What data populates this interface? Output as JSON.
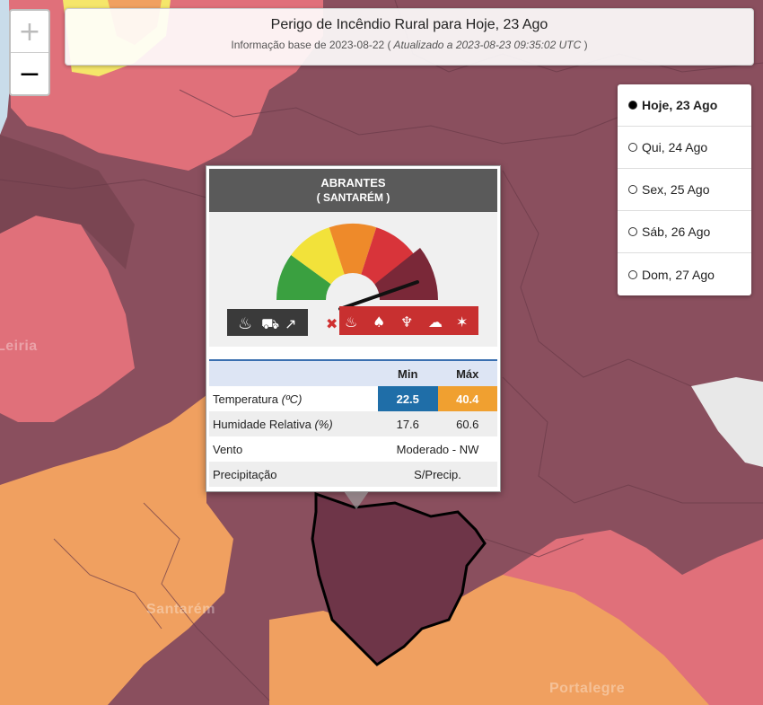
{
  "header": {
    "title": "Perigo de Incêndio Rural para Hoje, 23 Ago",
    "subtitle_prefix": "Informação base de 2023-08-22 (",
    "subtitle_updated": " Atualizado a 2023-08-23 09:35:02 UTC ",
    "subtitle_suffix": ")"
  },
  "zoom": {
    "in": "+",
    "out": "−"
  },
  "days": [
    {
      "label": "Hoje, 23 Ago",
      "selected": true
    },
    {
      "label": "Qui, 24 Ago",
      "selected": false
    },
    {
      "label": "Sex, 25 Ago",
      "selected": false
    },
    {
      "label": "Sáb, 26 Ago",
      "selected": false
    },
    {
      "label": "Dom, 27 Ago",
      "selected": false
    }
  ],
  "popup": {
    "municipality": "ABRANTES",
    "district": "( SANTARÉM )",
    "danger_level": 5,
    "table": {
      "col_min": "Min",
      "col_max": "Máx",
      "rows": {
        "temp_label": "Temperatura",
        "temp_unit": "(ºC)",
        "temp_min": "22.5",
        "temp_max": "40.4",
        "hum_label": "Humidade Relativa",
        "hum_unit": "(%)",
        "hum_min": "17.6",
        "hum_max": "60.6",
        "wind_label": "Vento",
        "wind_value": "Moderado - NW",
        "precip_label": "Precipitação",
        "precip_value": "S/Precip."
      }
    },
    "icons": {
      "allowed": [
        "fire-icon",
        "tractor-icon",
        "smoke-icon"
      ],
      "forbidden": [
        "campfire-icon",
        "bonfire-icon",
        "grill-icon",
        "smoker-icon",
        "fireworks-icon"
      ]
    }
  },
  "map_labels": {
    "leiria": "Leiria",
    "santarem": "Santarém",
    "portalegre": "Portalegre"
  },
  "colors": {
    "max_danger": "#8a4f5e",
    "very_high": "#e0707a",
    "high": "#f0a060",
    "moderate": "#f5e66a",
    "low": "#e8e8e8",
    "selected_border": "#000000"
  }
}
